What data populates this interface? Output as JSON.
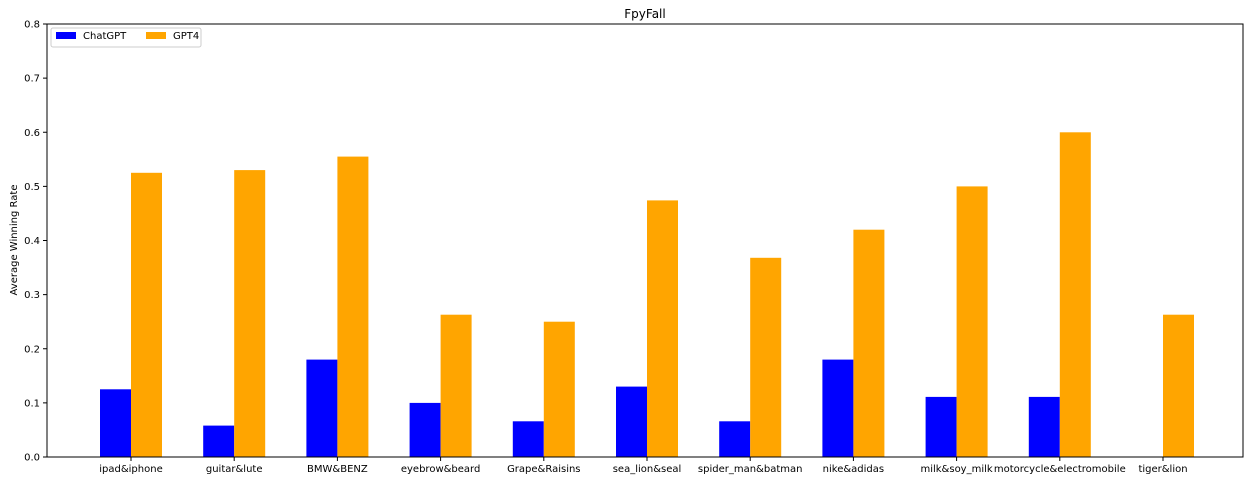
{
  "chart_data": {
    "type": "bar",
    "title": "FpyFall",
    "xlabel": "",
    "ylabel": "Average Winning Rate",
    "ylim": [
      0,
      0.8
    ],
    "yticks": [
      "0.0",
      "0.1",
      "0.2",
      "0.3",
      "0.4",
      "0.5",
      "0.6",
      "0.7",
      "0.8"
    ],
    "grid": false,
    "legend_position": "top-left",
    "categories": [
      "ipad&iphone",
      "guitar&lute",
      "BMW&BENZ",
      "eyebrow&beard",
      "Grape&Raisins",
      "sea_lion&seal",
      "spider_man&batman",
      "nike&adidas",
      "milk&soy_milk",
      "motorcycle&electromobile",
      "tiger&lion"
    ],
    "series": [
      {
        "name": "ChatGPT",
        "color": "#0000ff",
        "values": [
          0.125,
          0.058,
          0.18,
          0.1,
          0.066,
          0.13,
          0.066,
          0.18,
          0.111,
          0.111,
          0.0
        ]
      },
      {
        "name": "GPT4",
        "color": "#ffa500",
        "values": [
          0.525,
          0.53,
          0.555,
          0.263,
          0.25,
          0.474,
          0.368,
          0.42,
          0.5,
          0.6,
          0.263
        ]
      }
    ]
  }
}
